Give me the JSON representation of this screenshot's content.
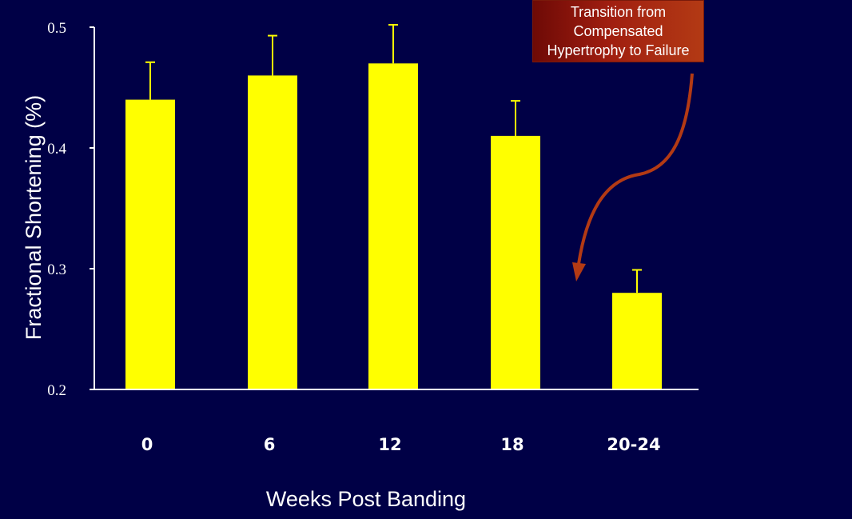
{
  "colors": {
    "background": "#000046",
    "bar": "#ffff00",
    "axis": "#ffffff",
    "arrow": "#b33a14"
  },
  "annotation": {
    "text": "Transition from Compensated Hypertrophy to Failure"
  },
  "chart_data": {
    "type": "bar",
    "categories": [
      "0",
      "6",
      "12",
      "18",
      "20-24"
    ],
    "values": [
      0.44,
      0.46,
      0.47,
      0.41,
      0.28
    ],
    "errors": [
      0.031,
      0.033,
      0.032,
      0.029,
      0.019
    ],
    "ylim": [
      0.2,
      0.5
    ],
    "yticks": [
      "0.2",
      "0.3",
      "0.4",
      "0.5"
    ],
    "ytick_values": [
      0.2,
      0.3,
      0.4,
      0.5
    ],
    "ylabel": "Fractional Shortening (%)",
    "xlabel": "Weeks Post Banding",
    "grid": false,
    "legend": "none"
  }
}
